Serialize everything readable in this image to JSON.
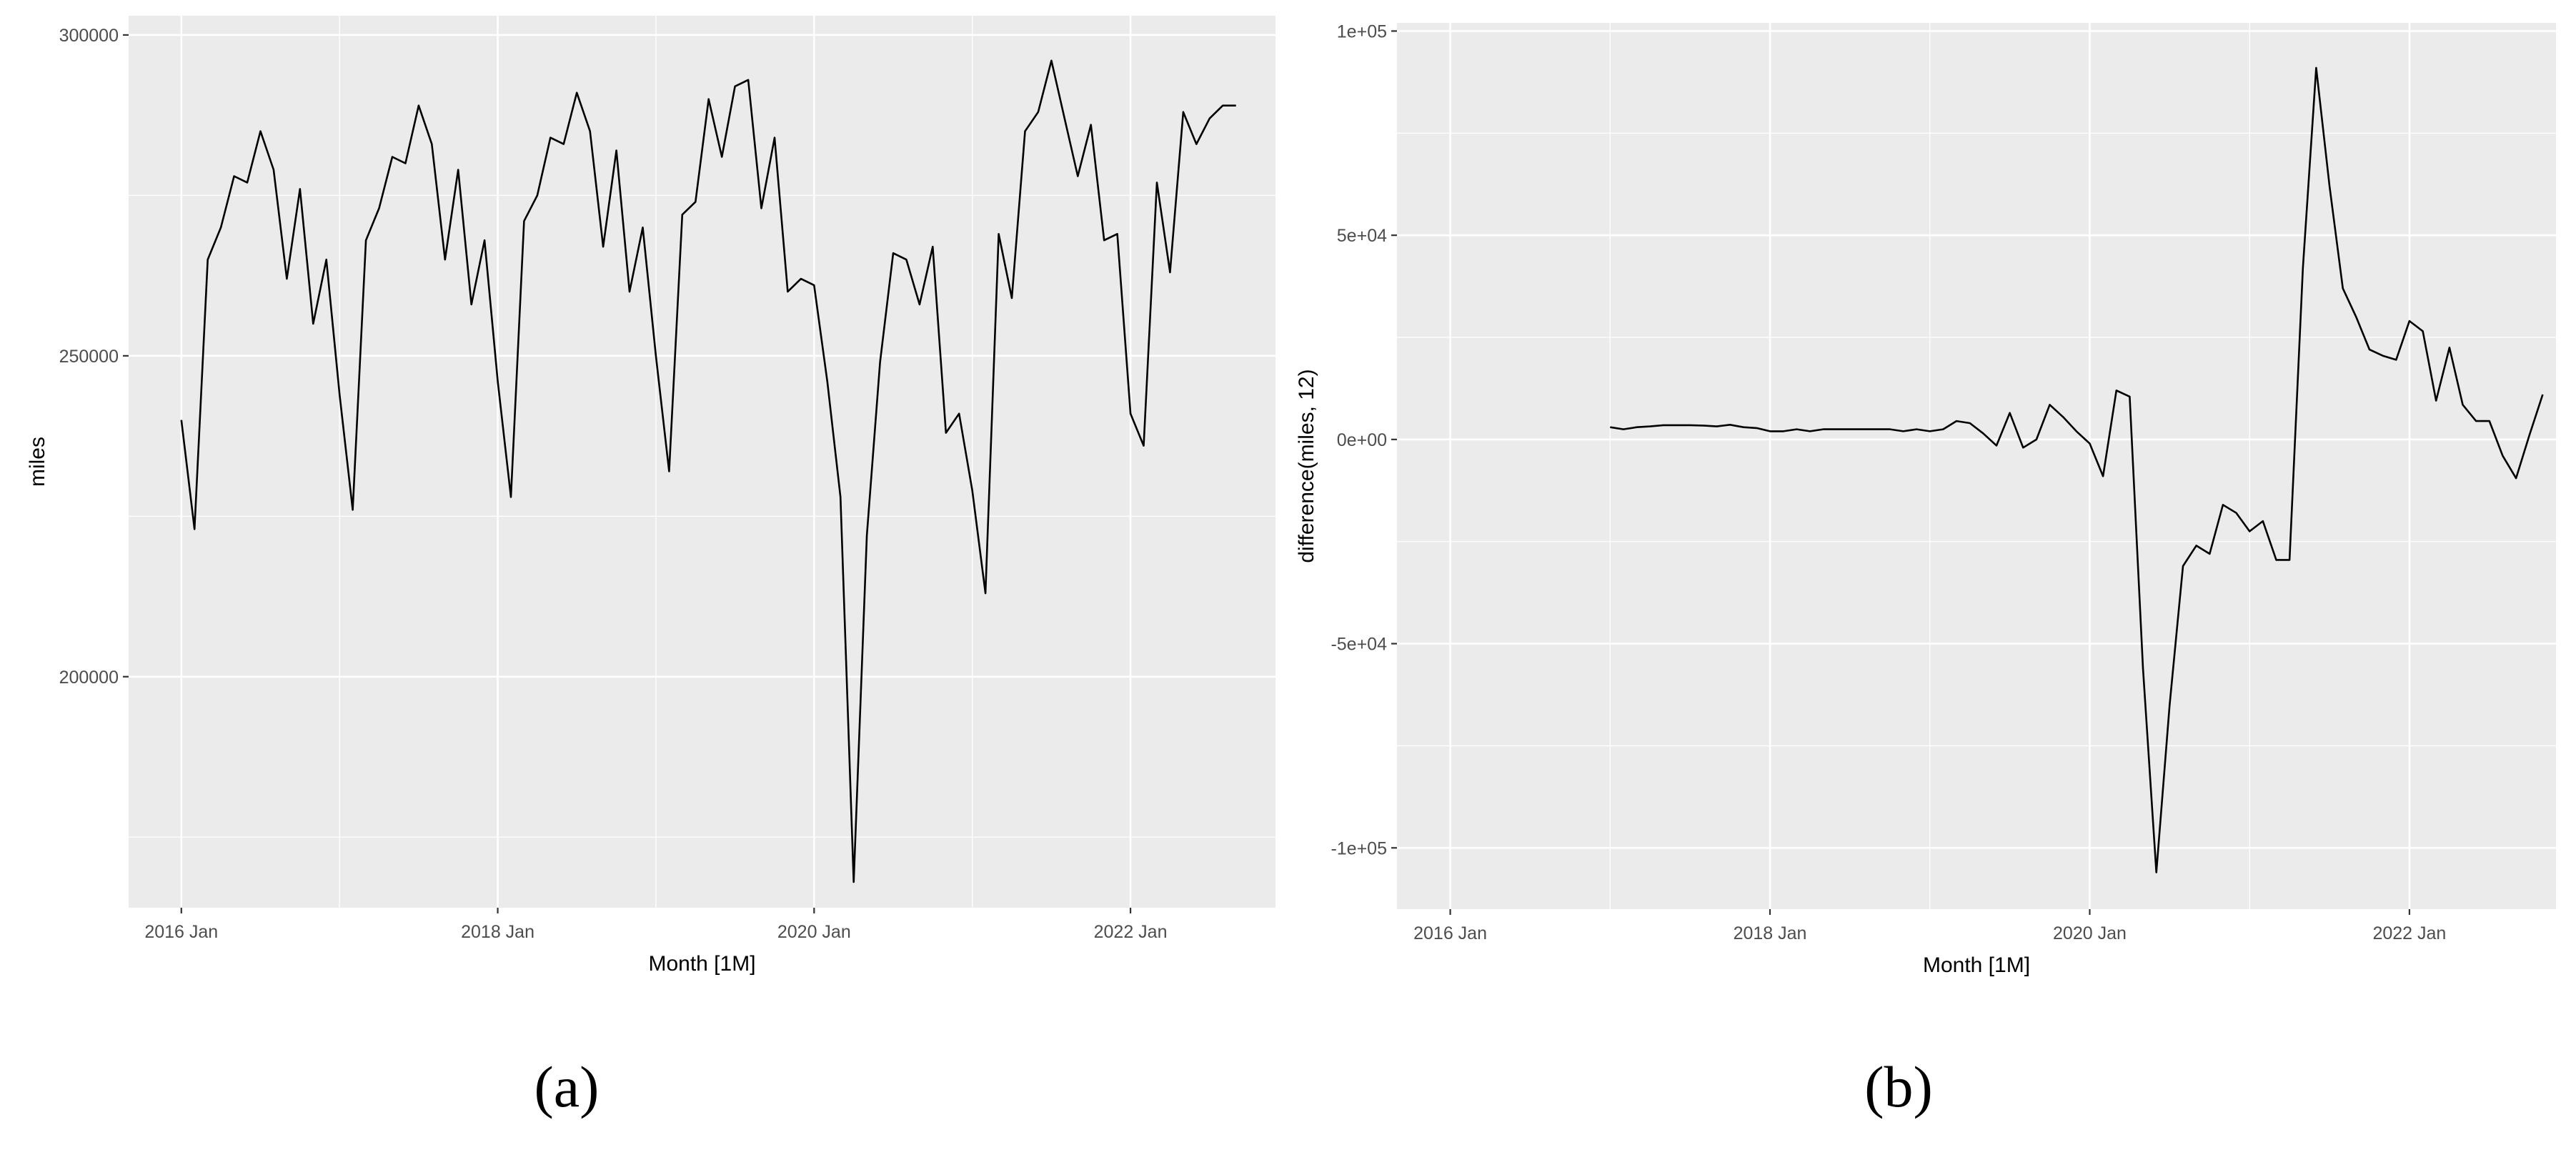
{
  "chart_data": [
    {
      "type": "line",
      "caption": "(a)",
      "xlabel": "Month [1M]",
      "ylabel": "miles",
      "x_start": "2016-01",
      "xlim": [
        "2015-09",
        "2022-12"
      ],
      "ylim": [
        164000,
        303000
      ],
      "x_ticks": [
        {
          "date": "2016-01",
          "label": "2016 Jan"
        },
        {
          "date": "2018-01",
          "label": "2018 Jan"
        },
        {
          "date": "2020-01",
          "label": "2020 Jan"
        },
        {
          "date": "2022-01",
          "label": "2022 Jan"
        }
      ],
      "y_ticks": [
        {
          "value": 200000,
          "label": "200000"
        },
        {
          "value": 250000,
          "label": "250000"
        },
        {
          "value": 300000,
          "label": "300000"
        }
      ],
      "values": [
        240000,
        223000,
        265000,
        270000,
        278000,
        277000,
        285000,
        279000,
        262000,
        276000,
        255000,
        265000,
        244000,
        226000,
        268000,
        273000,
        281000,
        280000,
        289000,
        283000,
        265000,
        279000,
        258000,
        268000,
        246000,
        228000,
        271000,
        275000,
        284000,
        283000,
        291000,
        285000,
        267000,
        282000,
        260000,
        270000,
        250000,
        232000,
        272000,
        274000,
        290000,
        281000,
        292000,
        293000,
        273000,
        284000,
        260000,
        262000,
        261000,
        246000,
        228000,
        168000,
        222000,
        249000,
        266000,
        265000,
        258000,
        267000,
        238000,
        241000,
        229000,
        213000,
        269000,
        259000,
        285000,
        288000,
        296000,
        287000,
        278000,
        286000,
        268000,
        269000,
        241000,
        236000,
        277000,
        263000,
        288000,
        283000,
        287000,
        289000,
        289000
      ],
      "grid": true,
      "legend": "none"
    },
    {
      "type": "line",
      "caption": "(b)",
      "xlabel": "Month [1M]",
      "ylabel": "difference(miles, 12)",
      "x_start": "2017-01",
      "xlim": [
        "2015-09",
        "2022-12"
      ],
      "ylim": [
        -115000,
        102000
      ],
      "x_ticks": [
        {
          "date": "2016-01",
          "label": "2016 Jan"
        },
        {
          "date": "2018-01",
          "label": "2018 Jan"
        },
        {
          "date": "2020-01",
          "label": "2020 Jan"
        },
        {
          "date": "2022-01",
          "label": "2022 Jan"
        }
      ],
      "y_ticks": [
        {
          "value": -100000,
          "label": "-1e+05"
        },
        {
          "value": -50000,
          "label": "-5e+04"
        },
        {
          "value": 0,
          "label": "0e+00"
        },
        {
          "value": 50000,
          "label": "5e+04"
        },
        {
          "value": 100000,
          "label": "1e+05"
        }
      ],
      "values": [
        3000,
        2500,
        3000,
        3200,
        3500,
        3500,
        3500,
        3400,
        3200,
        3600,
        3000,
        2800,
        2000,
        2000,
        2500,
        2000,
        2500,
        2500,
        2500,
        2500,
        2500,
        2500,
        2000,
        2500,
        2000,
        2500,
        4500,
        4000,
        1500,
        -1500,
        6500,
        -2000,
        0,
        8500,
        5500,
        2000,
        -1000,
        -9000,
        12000,
        10500,
        -56000,
        -106000,
        -65000,
        -31000,
        -26000,
        -28000,
        -16000,
        -18000,
        -22500,
        -20000,
        -29500,
        -29500,
        42000,
        91000,
        62000,
        37000,
        30000,
        22000,
        20500,
        19500,
        29000,
        26500,
        9500,
        22500,
        8500,
        4500,
        4500,
        -4000,
        -9500,
        1000,
        11000
      ],
      "grid": true,
      "legend": "none"
    }
  ]
}
